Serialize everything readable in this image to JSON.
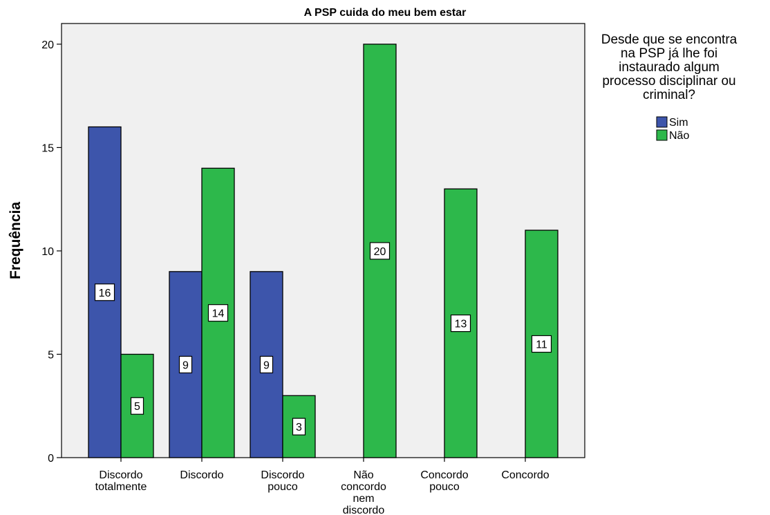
{
  "chart_data": {
    "type": "bar",
    "title": "A PSP cuida do meu bem estar",
    "xlabel": "",
    "ylabel": "Frequência",
    "ylim": [
      0,
      21
    ],
    "yticks": [
      0,
      5,
      10,
      15,
      20
    ],
    "grid": false,
    "legend_position": "top-right",
    "legend_title": "Desde que se encontra na PSP já lhe foi instaurado algum processo disciplinar ou criminal?",
    "categories": [
      "Discordo totalmente",
      "Discordo",
      "Discordo pouco",
      "Não concordo nem discordo",
      "Concordo pouco",
      "Concordo"
    ],
    "series": [
      {
        "name": "Sim",
        "color": "#3d55ab",
        "values": [
          16,
          9,
          9,
          null,
          null,
          null
        ]
      },
      {
        "name": "Não",
        "color": "#2db84b",
        "values": [
          5,
          14,
          3,
          20,
          13,
          11
        ]
      }
    ],
    "plot_background": "#f0f0f0"
  }
}
